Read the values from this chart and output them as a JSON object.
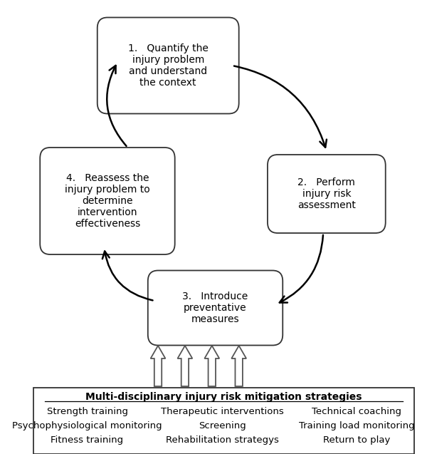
{
  "box1_text": "1.   Quantify the\ninjury problem\nand understand\nthe context",
  "box2_text": "2.   Perform\ninjury risk\nassessment",
  "box3_text": "3.   Introduce\npreventative\nmeasures",
  "box4_text": "4.   Reassess the\ninjury problem to\ndetermine\nintervention\neffectiveness",
  "box_bg": "#ffffff",
  "box_edge": "#333333",
  "fig_bg": "#ffffff",
  "bottom_box_title": "Multi-disciplinary injury risk mitigation strategies",
  "bottom_items_row1": [
    "Strength training",
    "Therapeutic interventions",
    "Technical coaching"
  ],
  "bottom_items_row2": [
    "Psychophysiological monitoring",
    "Screening",
    "Training load monitoring"
  ],
  "bottom_items_row3": [
    "Fitness training",
    "Rehabilitation strategys",
    "Return to play"
  ],
  "font_size_box": 10,
  "font_size_bottom": 9.5,
  "font_size_title": 10
}
